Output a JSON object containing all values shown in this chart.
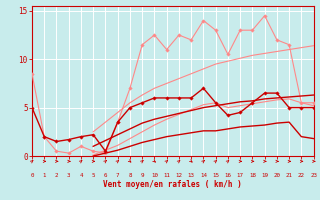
{
  "x": [
    0,
    1,
    2,
    3,
    4,
    5,
    6,
    7,
    8,
    9,
    10,
    11,
    12,
    13,
    14,
    15,
    16,
    17,
    18,
    19,
    20,
    21,
    22,
    23
  ],
  "series": [
    {
      "color": "#ff8888",
      "linewidth": 0.8,
      "marker": "D",
      "markersize": 1.8,
      "y": [
        8.5,
        2.0,
        0.5,
        0.3,
        1.0,
        0.5,
        0.3,
        3.5,
        7.0,
        11.5,
        12.5,
        11.0,
        12.5,
        12.0,
        14.0,
        13.0,
        10.5,
        13.0,
        13.0,
        14.5,
        12.0,
        11.5,
        5.5,
        5.5
      ]
    },
    {
      "color": "#ff8888",
      "linewidth": 0.8,
      "marker": null,
      "y": [
        null,
        null,
        null,
        null,
        null,
        2.5,
        3.5,
        4.5,
        5.5,
        6.3,
        7.0,
        7.5,
        8.0,
        8.5,
        9.0,
        9.5,
        9.8,
        10.1,
        10.4,
        10.6,
        10.8,
        11.0,
        11.2,
        11.4
      ]
    },
    {
      "color": "#ff8888",
      "linewidth": 0.8,
      "marker": null,
      "y": [
        null,
        null,
        null,
        null,
        null,
        0.1,
        0.6,
        1.1,
        1.8,
        2.5,
        3.2,
        3.8,
        4.3,
        4.8,
        5.3,
        5.5,
        5.0,
        5.2,
        5.4,
        5.6,
        5.8,
        5.9,
        5.5,
        5.2
      ]
    },
    {
      "color": "#cc0000",
      "linewidth": 1.0,
      "marker": "D",
      "markersize": 1.8,
      "y": [
        5.0,
        2.0,
        1.5,
        1.7,
        2.0,
        2.2,
        0.5,
        3.5,
        5.0,
        5.5,
        6.0,
        6.0,
        6.0,
        6.0,
        7.0,
        5.5,
        4.2,
        4.5,
        5.5,
        6.5,
        6.5,
        5.0,
        5.0,
        5.0
      ]
    },
    {
      "color": "#cc0000",
      "linewidth": 1.0,
      "marker": null,
      "y": [
        null,
        null,
        null,
        null,
        null,
        1.0,
        1.6,
        2.2,
        2.8,
        3.4,
        3.8,
        4.1,
        4.4,
        4.7,
        5.0,
        5.2,
        5.4,
        5.6,
        5.7,
        5.9,
        6.0,
        6.1,
        6.2,
        6.3
      ]
    },
    {
      "color": "#cc0000",
      "linewidth": 1.0,
      "marker": null,
      "y": [
        null,
        null,
        null,
        null,
        null,
        0.0,
        0.3,
        0.6,
        1.0,
        1.4,
        1.7,
        2.0,
        2.2,
        2.4,
        2.6,
        2.6,
        2.8,
        3.0,
        3.1,
        3.2,
        3.4,
        3.5,
        2.0,
        1.8
      ]
    }
  ],
  "xlabel": "Vent moyen/en rafales ( km/h )",
  "xlim": [
    0,
    23
  ],
  "ylim": [
    0,
    15.5
  ],
  "yticks": [
    0,
    5,
    10,
    15
  ],
  "xticks": [
    0,
    1,
    2,
    3,
    4,
    5,
    6,
    7,
    8,
    9,
    10,
    11,
    12,
    13,
    14,
    15,
    16,
    17,
    18,
    19,
    20,
    21,
    22,
    23
  ],
  "bg_color": "#c8ecec",
  "grid_color": "#ffffff",
  "line_color": "#cc0000",
  "xlabel_color": "#cc0000",
  "tick_color": "#cc0000",
  "figsize": [
    3.2,
    2.0
  ],
  "dpi": 100
}
